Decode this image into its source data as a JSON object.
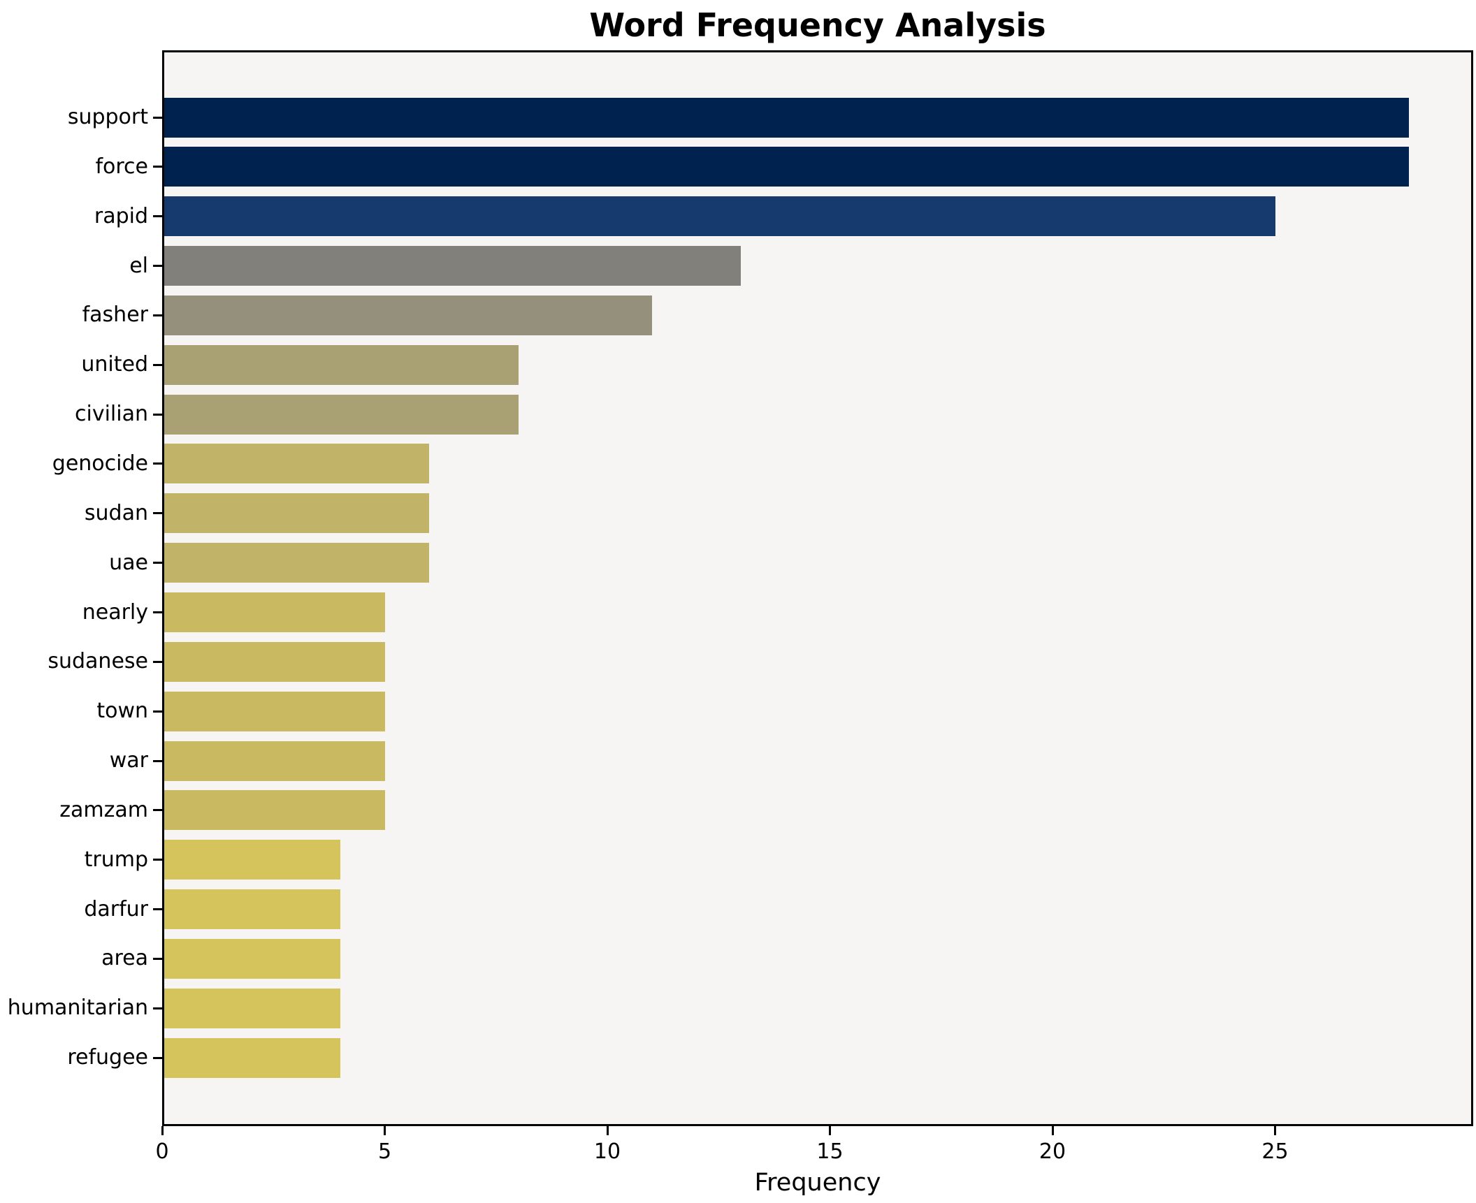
{
  "chart_data": {
    "type": "bar",
    "orientation": "horizontal",
    "title": "Word Frequency Analysis",
    "xlabel": "Frequency",
    "ylabel": "",
    "categories": [
      "support",
      "force",
      "rapid",
      "el",
      "fasher",
      "united",
      "civilian",
      "genocide",
      "sudan",
      "uae",
      "nearly",
      "sudanese",
      "town",
      "war",
      "zamzam",
      "trump",
      "darfur",
      "area",
      "humanitarian",
      "refugee"
    ],
    "values": [
      28,
      28,
      25,
      13,
      11,
      8,
      8,
      6,
      6,
      6,
      5,
      5,
      5,
      5,
      5,
      4,
      4,
      4,
      4,
      4
    ],
    "bar_colors": [
      "#00224e",
      "#00224e",
      "#163a6e",
      "#82807a",
      "#95907b",
      "#a9a073",
      "#a9a073",
      "#c1b469",
      "#c1b469",
      "#c1b469",
      "#c9ba61",
      "#c9ba61",
      "#c9ba61",
      "#c9ba61",
      "#c9ba61",
      "#d5c35c",
      "#d5c35c",
      "#d5c35c",
      "#d5c35c",
      "#d5c35c"
    ],
    "xticks": [
      0,
      5,
      10,
      15,
      20,
      25
    ],
    "xlim": [
      0,
      29.45
    ],
    "grid": false,
    "legend": "none",
    "plot_background": "#f6f5f3",
    "figure_background": "#ffffff",
    "spine_color": "#000000",
    "text_color": "#000000"
  }
}
